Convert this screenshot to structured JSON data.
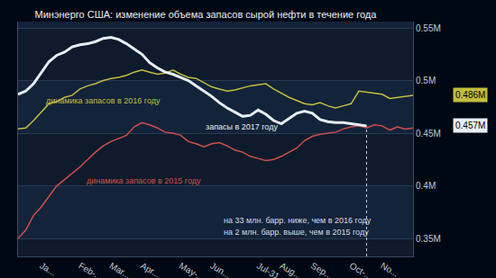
{
  "chart_data": {
    "type": "line",
    "title": "Минэнерго США: изменение объема запасов сырой нефти в течение года",
    "categories": [
      null,
      null,
      null,
      "Ja...",
      null,
      null,
      null,
      null,
      "Feb-...",
      null,
      null,
      null,
      "Mar...",
      null,
      null,
      null,
      "Apr...",
      null,
      null,
      null,
      null,
      "May-...",
      null,
      null,
      null,
      "Jun...",
      null,
      null,
      null,
      null,
      null,
      "Jul-31",
      null,
      null,
      "Aug...",
      null,
      null,
      null,
      "Sep...",
      null,
      null,
      null,
      null,
      "Oct-...",
      null,
      null,
      null,
      "No...",
      null,
      null,
      null,
      null
    ],
    "ylim": [
      0.333,
      0.556
    ],
    "yticks": [
      {
        "value": 0.35,
        "label": "0.35M"
      },
      {
        "value": 0.4,
        "label": "0.4M"
      },
      {
        "value": 0.45,
        "label": "0.45M"
      },
      {
        "value": 0.5,
        "label": "0.5M"
      },
      {
        "value": 0.55,
        "label": "0.55M"
      }
    ],
    "grid": true,
    "series": [
      {
        "name": "динамика запасов в 2015 году",
        "color": "#d0504c",
        "values": [
          0.35,
          0.358,
          0.372,
          0.38,
          0.39,
          0.4,
          0.406,
          0.412,
          0.418,
          0.425,
          0.432,
          0.438,
          0.442,
          0.445,
          0.448,
          0.456,
          0.46,
          0.458,
          0.455,
          0.451,
          0.45,
          0.448,
          0.442,
          0.44,
          0.437,
          0.44,
          0.441,
          0.438,
          0.434,
          0.432,
          0.428,
          0.426,
          0.424,
          0.425,
          0.428,
          0.432,
          0.436,
          0.443,
          0.447,
          0.449,
          0.45,
          0.451,
          0.454,
          0.456,
          0.457,
          0.455,
          0.458,
          0.457,
          0.453,
          0.456,
          0.454,
          0.455
        ]
      },
      {
        "name": "динамика запасов в 2016 году",
        "color": "#c2bd3f",
        "values": [
          0.454,
          0.455,
          0.462,
          0.47,
          0.478,
          0.48,
          0.484,
          0.486,
          0.492,
          0.495,
          0.497,
          0.5,
          0.502,
          0.503,
          0.505,
          0.508,
          0.51,
          0.508,
          0.506,
          0.507,
          0.51,
          0.506,
          0.503,
          0.502,
          0.498,
          0.494,
          0.492,
          0.49,
          0.491,
          0.493,
          0.495,
          0.496,
          0.497,
          0.492,
          0.488,
          0.484,
          0.481,
          0.478,
          0.477,
          0.479,
          0.476,
          0.474,
          0.476,
          0.478,
          0.49,
          0.489,
          0.488,
          0.487,
          0.483,
          0.484,
          0.485,
          0.486
        ],
        "value_labels": [
          null,
          null,
          null,
          null,
          null,
          null,
          null,
          null,
          null,
          null,
          null,
          null,
          null,
          null,
          null,
          null,
          null,
          null,
          null,
          null,
          null,
          null,
          null,
          null,
          null,
          null,
          null,
          null,
          null,
          null,
          null,
          null,
          null,
          null,
          null,
          null,
          null,
          null,
          null,
          null,
          null,
          null,
          null,
          null,
          null,
          null,
          null,
          null,
          null,
          null,
          null,
          "0.486M"
        ]
      },
      {
        "name": "запасы в 2017 году",
        "color": "#e8eef5",
        "values": [
          0.487,
          0.49,
          0.497,
          0.508,
          0.518,
          0.524,
          0.527,
          0.532,
          0.534,
          0.535,
          0.537,
          0.54,
          0.541,
          0.539,
          0.535,
          0.53,
          0.525,
          0.517,
          0.512,
          0.508,
          0.506,
          0.503,
          0.5,
          0.495,
          0.49,
          0.485,
          0.479,
          0.474,
          0.47,
          0.466,
          0.467,
          0.472,
          0.468,
          0.462,
          0.459,
          0.464,
          0.469,
          0.471,
          0.469,
          0.463,
          0.461,
          0.46,
          0.46,
          0.459,
          0.458,
          0.457,
          null,
          null,
          null,
          null,
          null,
          null
        ],
        "value_labels": [
          null,
          null,
          null,
          null,
          null,
          null,
          null,
          null,
          null,
          null,
          null,
          null,
          null,
          null,
          null,
          null,
          null,
          null,
          null,
          null,
          null,
          null,
          null,
          null,
          null,
          null,
          null,
          null,
          null,
          null,
          null,
          null,
          null,
          null,
          null,
          null,
          null,
          null,
          null,
          null,
          null,
          null,
          null,
          null,
          null,
          "0.457M",
          null,
          null,
          null,
          null,
          null,
          null
        ]
      }
    ],
    "annotations": [
      "на 33 млн. барр. ниже, чем в 2016 году",
      "на 2 млн. барр. выше, чем в 2015 году"
    ]
  }
}
